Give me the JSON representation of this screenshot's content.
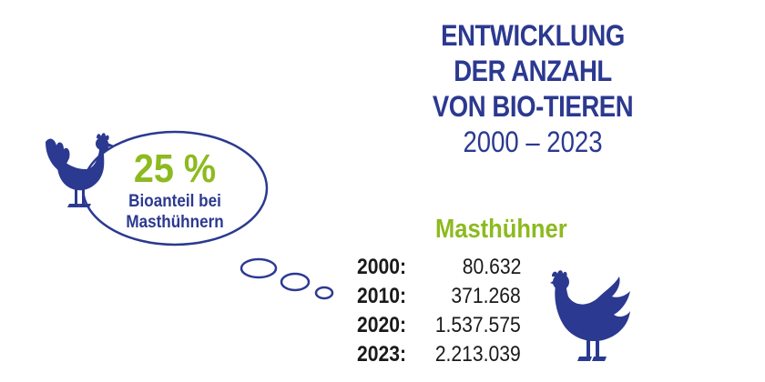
{
  "title": {
    "line1": "ENTWICKLUNG",
    "line2": "DER ANZAHL",
    "line3": "VON BIO-TIEREN",
    "years": "2000 – 2023"
  },
  "bubble": {
    "percent": "25 %",
    "label_line1": "Bioanteil bei",
    "label_line2": "Masthühnern"
  },
  "stats": {
    "heading": "Masthühner",
    "rows": [
      {
        "year": "2000:",
        "value": "80.632"
      },
      {
        "year": "2010:",
        "value": "371.268"
      },
      {
        "year": "2020:",
        "value": "1.537.575"
      },
      {
        "year": "2023:",
        "value": "2.213.039"
      }
    ]
  },
  "colors": {
    "navy": "#2b3990",
    "green": "#8dba1f",
    "text": "#1a1a1a"
  },
  "icons": [
    "hen-icon",
    "thought-bubble"
  ]
}
